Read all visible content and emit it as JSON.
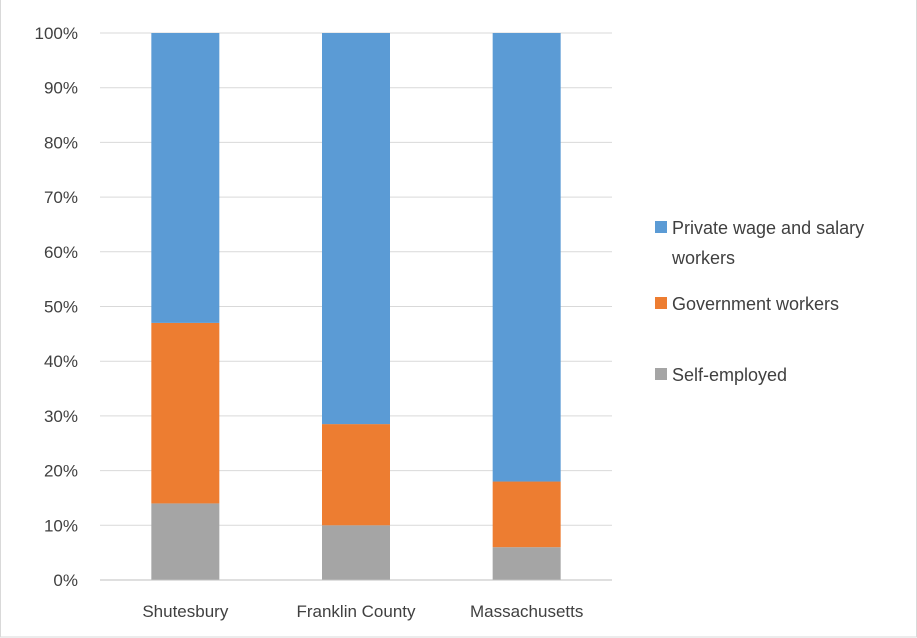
{
  "chart_data": {
    "type": "bar",
    "stacked": true,
    "percent": true,
    "categories": [
      "Shutesbury",
      "Franklin County",
      "Massachusetts"
    ],
    "series": [
      {
        "name": "Self-employed",
        "color": "#a5a5a5",
        "values": [
          14,
          10,
          6
        ]
      },
      {
        "name": "Government workers",
        "color": "#ed7d31",
        "values": [
          33,
          18.5,
          12
        ]
      },
      {
        "name": "Private wage and salary workers",
        "color": "#5b9bd5",
        "values": [
          53,
          71.5,
          82
        ]
      }
    ],
    "legend_order": [
      "Private wage and salary workers",
      "Government workers",
      "Self-employed"
    ],
    "legend_lines": [
      [
        "Private wage and salary",
        "workers"
      ],
      [
        "Government workers"
      ],
      [
        "Self-employed"
      ]
    ],
    "yticks": [
      "0%",
      "10%",
      "20%",
      "30%",
      "40%",
      "50%",
      "60%",
      "70%",
      "80%",
      "90%",
      "100%"
    ],
    "ylim": [
      0,
      100
    ],
    "grid": true,
    "legend_position": "right",
    "colors": {
      "gridline": "#d9d9d9",
      "axis": "#bfbfbf",
      "text": "#404040",
      "border": "#d9d9d9"
    }
  }
}
